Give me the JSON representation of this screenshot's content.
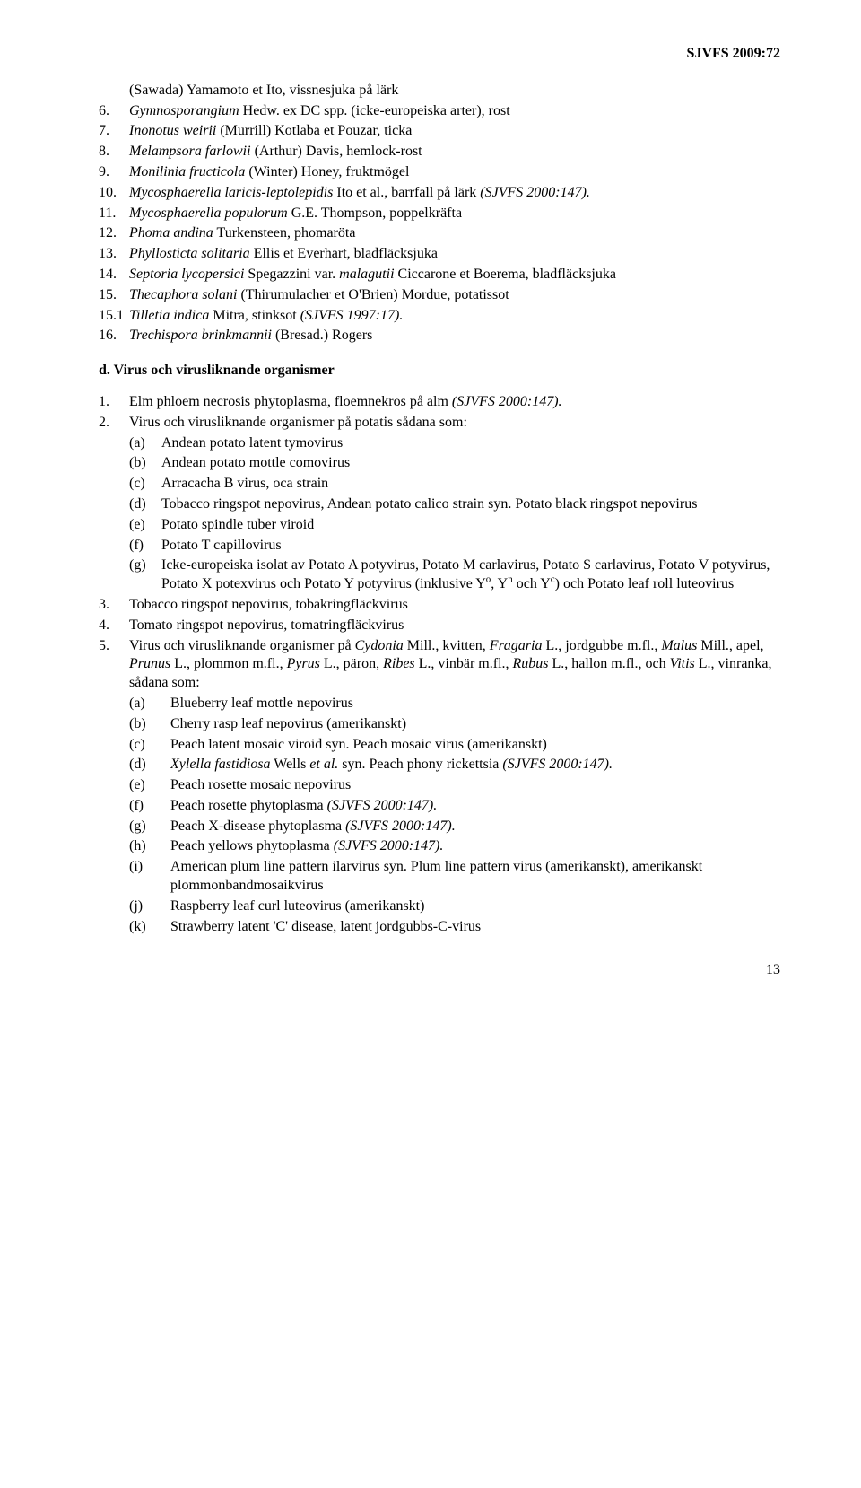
{
  "header": "SJVFS 2009:72",
  "topList": [
    {
      "num": "",
      "text": "(Sawada) Yamamoto et Ito, vissnesjuka på lärk"
    },
    {
      "num": "6.",
      "text": "<i>Gymnosporangium</i> Hedw. ex DC spp. (icke-europeiska arter), rost"
    },
    {
      "num": "7.",
      "text": "<i>Inonotus weirii</i> (Murrill) Kotlaba et Pouzar, ticka"
    },
    {
      "num": "8.",
      "text": "<i>Melampsora farlowii</i> (Arthur) Davis, hemlock-rost"
    },
    {
      "num": "9.",
      "text": "<i>Monilinia fructicola</i> (Winter) Honey, fruktmögel"
    },
    {
      "num": "10.",
      "text": "<i>Mycosphaerella laricis-leptolepidis</i> Ito et al., barrfall på lärk <i>(SJVFS 2000:147).</i>"
    },
    {
      "num": "11.",
      "text": "<i>Mycosphaerella populorum</i> G.E. Thompson, poppelkräfta"
    },
    {
      "num": "12.",
      "text": "<i>Phoma andina</i> Turkensteen, phomaröta"
    },
    {
      "num": "13.",
      "text": "<i>Phyllosticta solitaria</i> Ellis et Everhart, bladfläcksjuka"
    },
    {
      "num": "14.",
      "text": "<i>Septoria lycopersici</i> Spegazzini var. <i>malagutii</i> Ciccarone et Boerema, bladfläcksjuka"
    },
    {
      "num": "15.",
      "text": "<i>Thecaphora solani</i> (Thirumulacher et O'Brien) Mordue, potatissot"
    },
    {
      "num": "15.1",
      "text": "<i>Tilletia indica</i> Mitra, stinksot <i>(SJVFS 1997:17).</i>"
    },
    {
      "num": "16.",
      "text": "<i>Trechispora brinkmannii</i> (Bresad.) Rogers"
    }
  ],
  "sectionD": "d. Virus och virusliknande organismer",
  "virusList": [
    {
      "num": "1.",
      "text": "Elm phloem necrosis phytoplasma, floemnekros på alm <i>(SJVFS 2000:147).</i>"
    },
    {
      "num": "2.",
      "text": "Virus och virusliknande organismer på potatis sådana som:"
    }
  ],
  "sub2": [
    {
      "letter": "(a)",
      "text": "Andean potato latent tymovirus"
    },
    {
      "letter": "(b)",
      "text": "Andean potato mottle comovirus"
    },
    {
      "letter": "(c)",
      "text": "Arracacha B virus, oca strain"
    },
    {
      "letter": "(d)",
      "text": "Tobacco ringspot nepovirus, Andean potato calico strain syn. Potato black ringspot nepovirus"
    },
    {
      "letter": "(e)",
      "text": "Potato spindle tuber viroid"
    },
    {
      "letter": "(f)",
      "text": "Potato T capillovirus"
    },
    {
      "letter": "(g)",
      "text": "Icke-europeiska isolat av Potato A potyvirus, Potato M carlavirus, Potato S carlavirus, Potato V potyvirus, Potato X potexvirus och Potato Y potyvirus (inklusive Y<sup>o</sup>, Y<sup>n</sup> och Y<sup>c</sup>) och Potato leaf roll luteovirus"
    }
  ],
  "virusList2": [
    {
      "num": "3.",
      "text": "Tobacco ringspot nepovirus, tobakringfläckvirus"
    },
    {
      "num": "4.",
      "text": "Tomato ringspot nepovirus, tomatringfläckvirus"
    },
    {
      "num": "5.",
      "text": "Virus och virusliknande organismer på <i>Cydonia</i> Mill., kvitten, <i>Fragaria</i> L., jordgubbe m.fl., <i>Malus</i> Mill., apel, <i>Prunus</i> L., plommon m.fl., <i>Pyrus</i> L., päron, <i>Ribes</i> L., vinbär m.fl., <i>Rubus</i> L., hallon m.fl., och <i>Vitis</i> L., vinranka, sådana som:"
    }
  ],
  "sub5": [
    {
      "letter": "(a)",
      "text": "Blueberry leaf mottle nepovirus"
    },
    {
      "letter": "(b)",
      "text": "Cherry rasp leaf nepovirus (amerikanskt)"
    },
    {
      "letter": "(c)",
      "text": "Peach latent mosaic viroid syn. Peach mosaic virus (amerikanskt)"
    },
    {
      "letter": "(d)",
      "text": "<i>Xylella fastidiosa</i> Wells <i>et al.</i> syn. Peach phony rickettsia <i>(SJVFS 2000:147).</i>"
    },
    {
      "letter": "(e)",
      "text": "Peach rosette mosaic nepovirus"
    },
    {
      "letter": "(f)",
      "text": "Peach rosette phytoplasma <i>(SJVFS 2000:147).</i>"
    },
    {
      "letter": "(g)",
      "text": "Peach X-disease phytoplasma <i>(SJVFS 2000:147).</i>"
    },
    {
      "letter": "(h)",
      "text": "Peach yellows phytoplasma <i>(SJVFS 2000:147).</i>"
    },
    {
      "letter": "(i)",
      "text": "American plum line pattern ilarvirus syn. Plum line pattern virus (amerikanskt), amerikanskt plommonbandmosaikvirus"
    },
    {
      "letter": "(j)",
      "text": "Raspberry leaf curl luteovirus (amerikanskt)"
    },
    {
      "letter": "(k)",
      "text": "Strawberry latent 'C' disease, latent jordgubbs-C-virus"
    }
  ],
  "pageNum": "13"
}
